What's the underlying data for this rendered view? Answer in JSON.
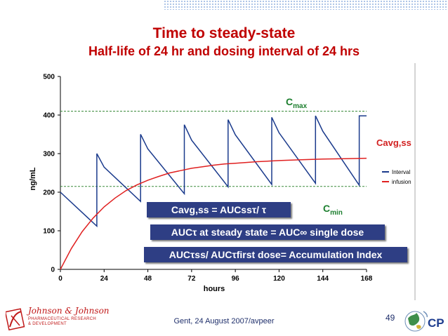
{
  "header": {
    "title": "Time to steady-state",
    "subtitle": "Half-life of 24 hr and dosing interval of 24 hrs"
  },
  "chart_data": {
    "type": "line",
    "xlabel": "hours",
    "ylabel": "ng/mL",
    "xlim": [
      0,
      168
    ],
    "ylim": [
      0,
      500
    ],
    "xticks": [
      0,
      24,
      48,
      72,
      96,
      120,
      144,
      168
    ],
    "yticks": [
      0,
      100,
      200,
      300,
      400,
      500
    ],
    "legend_position": "right",
    "series": [
      {
        "name": "Interval",
        "color": "#1a3a8c",
        "x": [
          0,
          20,
          20,
          24,
          44,
          44,
          48,
          68,
          68,
          72,
          92,
          92,
          96,
          116,
          116,
          120,
          140,
          140,
          144,
          164,
          164,
          168
        ],
        "y": [
          200,
          112,
          300,
          265,
          176,
          350,
          312,
          196,
          375,
          335,
          214,
          388,
          349,
          220,
          394,
          354,
          223,
          398,
          358,
          218,
          398,
          398
        ]
      },
      {
        "name": "infusion",
        "color": "#e02020",
        "x": [
          0,
          6,
          12,
          18,
          24,
          30,
          36,
          42,
          48,
          54,
          60,
          66,
          72,
          78,
          84,
          90,
          96,
          108,
          120,
          132,
          144,
          156,
          168
        ],
        "y": [
          0,
          54,
          98,
          133,
          162,
          185,
          204,
          219,
          231,
          241,
          250,
          256,
          262,
          266,
          270,
          273,
          275,
          279,
          282,
          284,
          286,
          287,
          288
        ]
      }
    ],
    "reference_lines": [
      {
        "label": "Cmax",
        "y": 410
      },
      {
        "label": "Cmin",
        "y": 215
      }
    ],
    "annotations": {
      "cmax_main": "C",
      "cmax_sub": "max",
      "cmin_main": "C",
      "cmin_sub": "min",
      "cavg": "Cavg,ss"
    }
  },
  "boxes": {
    "formula1": "Cavg,ss = AUCssτ/ τ",
    "formula2": "AUCτ at steady state = AUC∞ single dose",
    "formula3": "AUCτss/ AUCτfirst dose= Accumulation Index"
  },
  "footer": {
    "text": "Gent, 24 August 2007/avpeer",
    "page": "49"
  },
  "logo": {
    "name": "Johnson & Johnson",
    "sub_line1": "PHARMACEUTICAL RESEARCH",
    "sub_line2": "& DEVELOPMENT"
  },
  "colors": {
    "title": "#c00000",
    "box": "#2e3e84",
    "reference": "#1d7f2f"
  }
}
